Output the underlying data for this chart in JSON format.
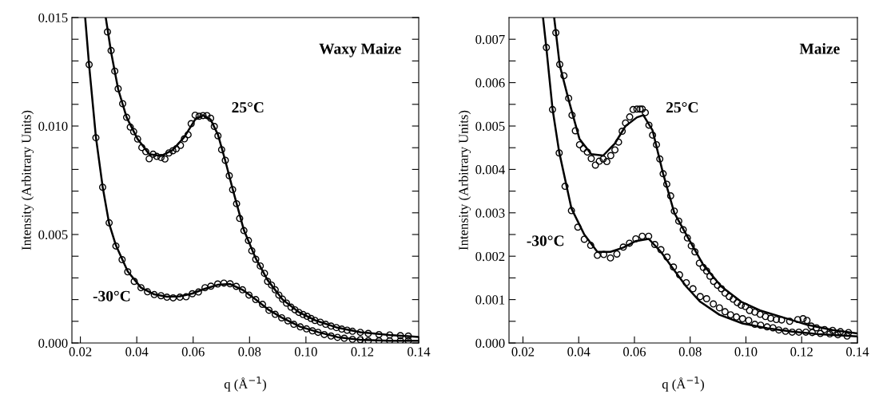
{
  "chart_data": [
    {
      "type": "scatter",
      "title": "Waxy Maize",
      "xlabel": "q (Å$^{−1}$)",
      "ylabel": "Intensity (Arbitrary Units)",
      "xlim": [
        0.017,
        0.14
      ],
      "xticks": [
        {
          "value": 0.02,
          "label": "0.02"
        },
        {
          "value": 0.04,
          "label": "0.04"
        },
        {
          "value": 0.06,
          "label": "0.06"
        },
        {
          "value": 0.08,
          "label": "0.08"
        },
        {
          "value": 0.1,
          "label": "0.10"
        },
        {
          "value": 0.12,
          "label": "0.12"
        },
        {
          "value": 0.14,
          "label": "0.14"
        }
      ],
      "ylim": [
        0,
        0.015
      ],
      "yticks": [
        {
          "value": 0,
          "label": "0.000"
        },
        {
          "value": 0.001,
          "label": null
        },
        {
          "value": 0.002,
          "label": null
        },
        {
          "value": 0.003,
          "label": null
        },
        {
          "value": 0.004,
          "label": null
        },
        {
          "value": 0.005,
          "label": "0.005"
        },
        {
          "value": 0.006,
          "label": null
        },
        {
          "value": 0.007,
          "label": null
        },
        {
          "value": 0.008,
          "label": null
        },
        {
          "value": 0.009,
          "label": null
        },
        {
          "value": 0.01,
          "label": "0.010"
        },
        {
          "value": 0.011,
          "label": null
        },
        {
          "value": 0.012,
          "label": null
        },
        {
          "value": 0.013,
          "label": null
        },
        {
          "value": 0.014,
          "label": null
        },
        {
          "value": 0.015,
          "label": "0.015"
        }
      ],
      "grid": false,
      "legend": false,
      "marker": "circle",
      "annotations": [
        "25°C",
        "-30°C"
      ],
      "series": [
        {
          "color": "#000000",
          "x": [
            0.0296,
            0.0309,
            0.0322,
            0.0334,
            0.035,
            0.0364,
            0.0377,
            0.0389,
            0.0403,
            0.0418,
            0.0432,
            0.0444,
            0.0458,
            0.0471,
            0.0486,
            0.05,
            0.0514,
            0.0528,
            0.054,
            0.0555,
            0.0569,
            0.0582,
            0.0593,
            0.0607,
            0.0621,
            0.0635,
            0.0649,
            0.0662,
            0.0675,
            0.0688,
            0.0701,
            0.0714,
            0.0728,
            0.074,
            0.0754,
            0.0765,
            0.078,
            0.0796,
            0.0808,
            0.0822,
            0.0838,
            0.0853,
            0.0864,
            0.0878,
            0.0891,
            0.0904,
            0.0917,
            0.0931,
            0.0947,
            0.0961,
            0.0975,
            0.099,
            0.1004,
            0.1018,
            0.1032,
            0.1051,
            0.107,
            0.1089,
            0.1108,
            0.1127,
            0.1146,
            0.1165,
            0.1193,
            0.1221,
            0.1259,
            0.1297,
            0.1335,
            0.1363
          ],
          "values": [
            0.01434,
            0.01348,
            0.01253,
            0.01172,
            0.01103,
            0.0104,
            0.00995,
            0.00974,
            0.0094,
            0.00901,
            0.00882,
            0.00849,
            0.0087,
            0.0086,
            0.00855,
            0.00848,
            0.00876,
            0.00886,
            0.00895,
            0.00911,
            0.00941,
            0.0096,
            0.01011,
            0.0105,
            0.01045,
            0.01048,
            0.01048,
            0.01036,
            0.00998,
            0.00955,
            0.00891,
            0.00842,
            0.00771,
            0.00707,
            0.00642,
            0.00574,
            0.00518,
            0.00472,
            0.00425,
            0.00386,
            0.00355,
            0.00321,
            0.00284,
            0.00267,
            0.00245,
            0.00221,
            0.00202,
            0.00184,
            0.00165,
            0.00153,
            0.00141,
            0.00131,
            0.00123,
            0.00113,
            0.00104,
            0.00096,
            0.00086,
            0.00078,
            0.00071,
            0.00064,
            0.00059,
            0.00054,
            0.00049,
            0.00044,
            0.00039,
            0.00037,
            0.00034,
            0.00032
          ]
        },
        {
          "color": "#000000",
          "x": [
            0.0231,
            0.0255,
            0.0279,
            0.0302,
            0.0326,
            0.0348,
            0.0368,
            0.0391,
            0.0415,
            0.0438,
            0.0462,
            0.0486,
            0.0507,
            0.0529,
            0.0553,
            0.0575,
            0.0597,
            0.0619,
            0.0642,
            0.0663,
            0.0687,
            0.0709,
            0.0731,
            0.0753,
            0.0775,
            0.0798,
            0.0822,
            0.0846,
            0.0869,
            0.0891,
            0.0914,
            0.0936,
            0.0957,
            0.098,
            0.1002,
            0.1023,
            0.1043,
            0.1065,
            0.1089,
            0.1112,
            0.1136,
            0.1165,
            0.1193,
            0.1221,
            0.1259,
            0.1297,
            0.1335,
            0.1363
          ],
          "values": [
            0.01283,
            0.00946,
            0.00718,
            0.00554,
            0.00447,
            0.00384,
            0.00328,
            0.00284,
            0.00255,
            0.00236,
            0.00223,
            0.00218,
            0.00211,
            0.00208,
            0.00211,
            0.00213,
            0.00227,
            0.00235,
            0.00255,
            0.00262,
            0.00272,
            0.00276,
            0.00273,
            0.00261,
            0.00245,
            0.00221,
            0.002,
            0.00178,
            0.00151,
            0.00132,
            0.00116,
            0.00102,
            0.00086,
            0.00074,
            0.00065,
            0.00056,
            0.00049,
            0.00039,
            0.00032,
            0.00026,
            0.00022,
            0.00017,
            0.00015,
            0.0001,
            0.0001,
            0.0001,
            0.0001,
            0.0001
          ]
        },
        {
          "type": "line",
          "color": "#000000",
          "marker": "none",
          "x": [
            0.029,
            0.0309,
            0.0334,
            0.0364,
            0.0403,
            0.0444,
            0.0486,
            0.0528,
            0.0569,
            0.0607,
            0.0635,
            0.0662,
            0.0688,
            0.0714,
            0.074,
            0.078,
            0.0822,
            0.0864,
            0.0917,
            0.0975,
            0.1032,
            0.1108,
            0.1193,
            0.1297,
            0.14
          ],
          "values": [
            0.015,
            0.0134,
            0.0117,
            0.0104,
            0.0094,
            0.0087,
            0.00862,
            0.0089,
            0.0095,
            0.0103,
            0.0105,
            0.0103,
            0.0096,
            0.0084,
            0.0071,
            0.0052,
            0.0039,
            0.0029,
            0.002,
            0.00142,
            0.00105,
            0.00072,
            0.0005,
            0.00037,
            0.00028
          ]
        },
        {
          "type": "line",
          "color": "#000000",
          "marker": "none",
          "x": [
            0.0217,
            0.0231,
            0.0255,
            0.0279,
            0.0302,
            0.0326,
            0.0368,
            0.0415,
            0.0462,
            0.0507,
            0.0553,
            0.0597,
            0.0642,
            0.0687,
            0.0731,
            0.0775,
            0.0822,
            0.0869,
            0.0914,
            0.098,
            0.1043,
            0.1112,
            0.1193,
            0.1297,
            0.14
          ],
          "values": [
            0.015,
            0.0128,
            0.0095,
            0.0072,
            0.0055,
            0.0045,
            0.0033,
            0.00255,
            0.00224,
            0.00213,
            0.00215,
            0.00228,
            0.0025,
            0.00268,
            0.00272,
            0.00245,
            0.002,
            0.00152,
            0.00117,
            0.00075,
            0.0005,
            0.00027,
            0.00015,
            0.0001,
            0.0001
          ]
        }
      ]
    },
    {
      "type": "scatter",
      "title": "Maize",
      "xlabel": "q (Å$^{−1}$)",
      "ylabel": "Intensity (Arbitrary Units)",
      "xlim": [
        0.015,
        0.14
      ],
      "xticks": [
        {
          "value": 0.02,
          "label": "0.02"
        },
        {
          "value": 0.04,
          "label": "0.04"
        },
        {
          "value": 0.06,
          "label": "0.06"
        },
        {
          "value": 0.08,
          "label": "0.08"
        },
        {
          "value": 0.1,
          "label": "0.10"
        },
        {
          "value": 0.12,
          "label": "0.12"
        },
        {
          "value": 0.14,
          "label": "0.14"
        }
      ],
      "ylim": [
        0,
        0.0075
      ],
      "yticks": [
        {
          "value": 0,
          "label": "0.000"
        },
        {
          "value": 0.0005,
          "label": null
        },
        {
          "value": 0.001,
          "label": "0.001"
        },
        {
          "value": 0.0015,
          "label": null
        },
        {
          "value": 0.002,
          "label": "0.002"
        },
        {
          "value": 0.0025,
          "label": null
        },
        {
          "value": 0.003,
          "label": "0.003"
        },
        {
          "value": 0.0035,
          "label": null
        },
        {
          "value": 0.004,
          "label": "0.004"
        },
        {
          "value": 0.0045,
          "label": null
        },
        {
          "value": 0.005,
          "label": "0.005"
        },
        {
          "value": 0.0055,
          "label": null
        },
        {
          "value": 0.006,
          "label": "0.006"
        },
        {
          "value": 0.0065,
          "label": null
        },
        {
          "value": 0.007,
          "label": "0.007"
        }
      ],
      "grid": false,
      "legend": false,
      "marker": "circle",
      "annotations": [
        "25°C",
        "-30°C"
      ],
      "series": [
        {
          "color": "#000000",
          "x": [
            0.0318,
            0.0332,
            0.0347,
            0.0364,
            0.0376,
            0.0388,
            0.0403,
            0.0417,
            0.0431,
            0.0445,
            0.046,
            0.0474,
            0.0488,
            0.0501,
            0.0515,
            0.053,
            0.0543,
            0.0556,
            0.0568,
            0.0583,
            0.0595,
            0.0609,
            0.062,
            0.0628,
            0.0639,
            0.0652,
            0.0665,
            0.0679,
            0.0691,
            0.0703,
            0.0716,
            0.073,
            0.0743,
            0.0759,
            0.0775,
            0.079,
            0.0804,
            0.0817,
            0.0833,
            0.0847,
            0.0859,
            0.0871,
            0.0884,
            0.0898,
            0.0912,
            0.0925,
            0.094,
            0.0954,
            0.0969,
            0.0983,
            0.0998,
            0.1013,
            0.1032,
            0.1051,
            0.107,
            0.1089,
            0.1109,
            0.1128,
            0.1157,
            0.1186,
            0.1205,
            0.1219,
            0.1234,
            0.1253,
            0.1282,
            0.1311,
            0.1339,
            0.1368
          ],
          "values": [
            0.00715,
            0.00642,
            0.00616,
            0.00564,
            0.00525,
            0.00489,
            0.00457,
            0.00448,
            0.0044,
            0.00425,
            0.0041,
            0.00419,
            0.00424,
            0.00418,
            0.00432,
            0.00445,
            0.00463,
            0.00488,
            0.00507,
            0.00521,
            0.00538,
            0.00539,
            0.00539,
            0.00539,
            0.00531,
            0.00502,
            0.00479,
            0.00457,
            0.00424,
            0.0039,
            0.00366,
            0.00339,
            0.00304,
            0.00281,
            0.00261,
            0.00242,
            0.00224,
            0.0021,
            0.00184,
            0.00174,
            0.00166,
            0.00154,
            0.00142,
            0.00133,
            0.00125,
            0.00115,
            0.00107,
            0.00101,
            0.00093,
            0.00087,
            0.00084,
            0.00075,
            0.00071,
            0.00066,
            0.00061,
            0.00057,
            0.00054,
            0.00053,
            0.0005,
            0.00054,
            0.00056,
            0.00052,
            0.00039,
            0.00035,
            0.00031,
            0.00029,
            0.00026,
            0.00024
          ]
        },
        {
          "color": "#000000",
          "x": [
            0.0284,
            0.0306,
            0.033,
            0.0351,
            0.0374,
            0.0397,
            0.042,
            0.0443,
            0.0467,
            0.049,
            0.0514,
            0.0537,
            0.056,
            0.0582,
            0.0605,
            0.0628,
            0.0651,
            0.0673,
            0.0695,
            0.0717,
            0.074,
            0.0762,
            0.0786,
            0.081,
            0.0836,
            0.0859,
            0.0883,
            0.0905,
            0.0925,
            0.0945,
            0.0966,
            0.0988,
            0.101,
            0.1032,
            0.1053,
            0.1076,
            0.1097,
            0.1118,
            0.1142,
            0.1166,
            0.119,
            0.1215,
            0.1238,
            0.1267,
            0.1301,
            0.133,
            0.1363
          ],
          "values": [
            0.00681,
            0.00538,
            0.00438,
            0.00361,
            0.00305,
            0.00267,
            0.00239,
            0.00225,
            0.00202,
            0.00204,
            0.00196,
            0.00205,
            0.00221,
            0.0023,
            0.0024,
            0.00246,
            0.00246,
            0.00227,
            0.00215,
            0.00198,
            0.00175,
            0.00157,
            0.00139,
            0.00125,
            0.00107,
            0.00102,
            0.0009,
            0.00081,
            0.00072,
            0.00065,
            0.0006,
            0.00056,
            0.00052,
            0.00043,
            0.00041,
            0.00037,
            0.00035,
            0.0003,
            0.00027,
            0.00025,
            0.00025,
            0.00025,
            0.00024,
            0.00022,
            0.00021,
            0.00019,
            0.00016
          ]
        },
        {
          "type": "line",
          "color": "#000000",
          "marker": "none",
          "x": [
            0.0312,
            0.0332,
            0.0364,
            0.0403,
            0.0445,
            0.0488,
            0.053,
            0.0568,
            0.0609,
            0.0632,
            0.0665,
            0.0703,
            0.0743,
            0.079,
            0.0847,
            0.0912,
            0.0983,
            0.1051,
            0.1128,
            0.1219,
            0.1311,
            0.14
          ],
          "values": [
            0.0075,
            0.0064,
            0.0056,
            0.0047,
            0.00435,
            0.00432,
            0.0046,
            0.005,
            0.0052,
            0.00525,
            0.0049,
            0.0039,
            0.003,
            0.00245,
            0.0018,
            0.0013,
            0.00095,
            0.00075,
            0.0006,
            0.00042,
            0.0003,
            0.00022
          ]
        },
        {
          "type": "line",
          "color": "#000000",
          "marker": "none",
          "x": [
            0.0272,
            0.0284,
            0.0306,
            0.033,
            0.0374,
            0.042,
            0.0467,
            0.0514,
            0.056,
            0.0605,
            0.0651,
            0.0695,
            0.074,
            0.0786,
            0.0836,
            0.0905,
            0.0988,
            0.1076,
            0.1166,
            0.1267,
            0.14
          ],
          "values": [
            0.0075,
            0.0068,
            0.0054,
            0.0044,
            0.0031,
            0.0025,
            0.0021,
            0.0021,
            0.0022,
            0.00235,
            0.0024,
            0.0021,
            0.0017,
            0.0013,
            0.00095,
            0.00065,
            0.00045,
            0.00034,
            0.00026,
            0.0002,
            0.00015
          ]
        }
      ]
    }
  ]
}
